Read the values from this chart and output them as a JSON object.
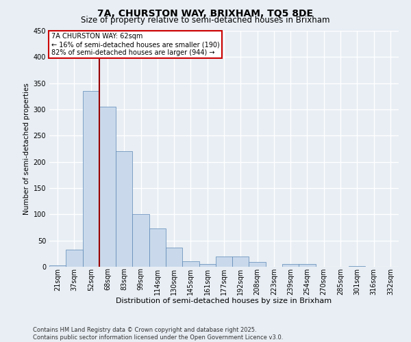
{
  "title": "7A, CHURSTON WAY, BRIXHAM, TQ5 8DE",
  "subtitle": "Size of property relative to semi-detached houses in Brixham",
  "xlabel": "Distribution of semi-detached houses by size in Brixham",
  "ylabel": "Number of semi-detached properties",
  "categories": [
    "21sqm",
    "37sqm",
    "52sqm",
    "68sqm",
    "83sqm",
    "99sqm",
    "114sqm",
    "130sqm",
    "145sqm",
    "161sqm",
    "177sqm",
    "192sqm",
    "208sqm",
    "223sqm",
    "239sqm",
    "254sqm",
    "270sqm",
    "285sqm",
    "301sqm",
    "316sqm",
    "332sqm"
  ],
  "values": [
    3,
    32,
    335,
    305,
    220,
    100,
    73,
    36,
    10,
    5,
    19,
    19,
    9,
    0,
    5,
    5,
    0,
    0,
    1,
    0,
    0
  ],
  "bar_color": "#c9d9eb",
  "bar_edge_color": "#5a86b5",
  "background_color": "#e8eef4",
  "grid_color": "#ffffff",
  "vline_x": 2.5,
  "vline_color": "#990000",
  "annotation_line1": "7A CHURSTON WAY: 62sqm",
  "annotation_line2": "← 16% of semi-detached houses are smaller (190)",
  "annotation_line3": "82% of semi-detached houses are larger (944) →",
  "annotation_box_color": "#ffffff",
  "annotation_box_edge": "#cc0000",
  "footer": "Contains HM Land Registry data © Crown copyright and database right 2025.\nContains public sector information licensed under the Open Government Licence v3.0.",
  "ylim": [
    0,
    450
  ],
  "yticks": [
    0,
    50,
    100,
    150,
    200,
    250,
    300,
    350,
    400,
    450
  ],
  "title_fontsize": 10,
  "subtitle_fontsize": 8.5,
  "xlabel_fontsize": 8,
  "ylabel_fontsize": 7.5,
  "tick_fontsize": 7,
  "footer_fontsize": 6,
  "annotation_fontsize": 7
}
